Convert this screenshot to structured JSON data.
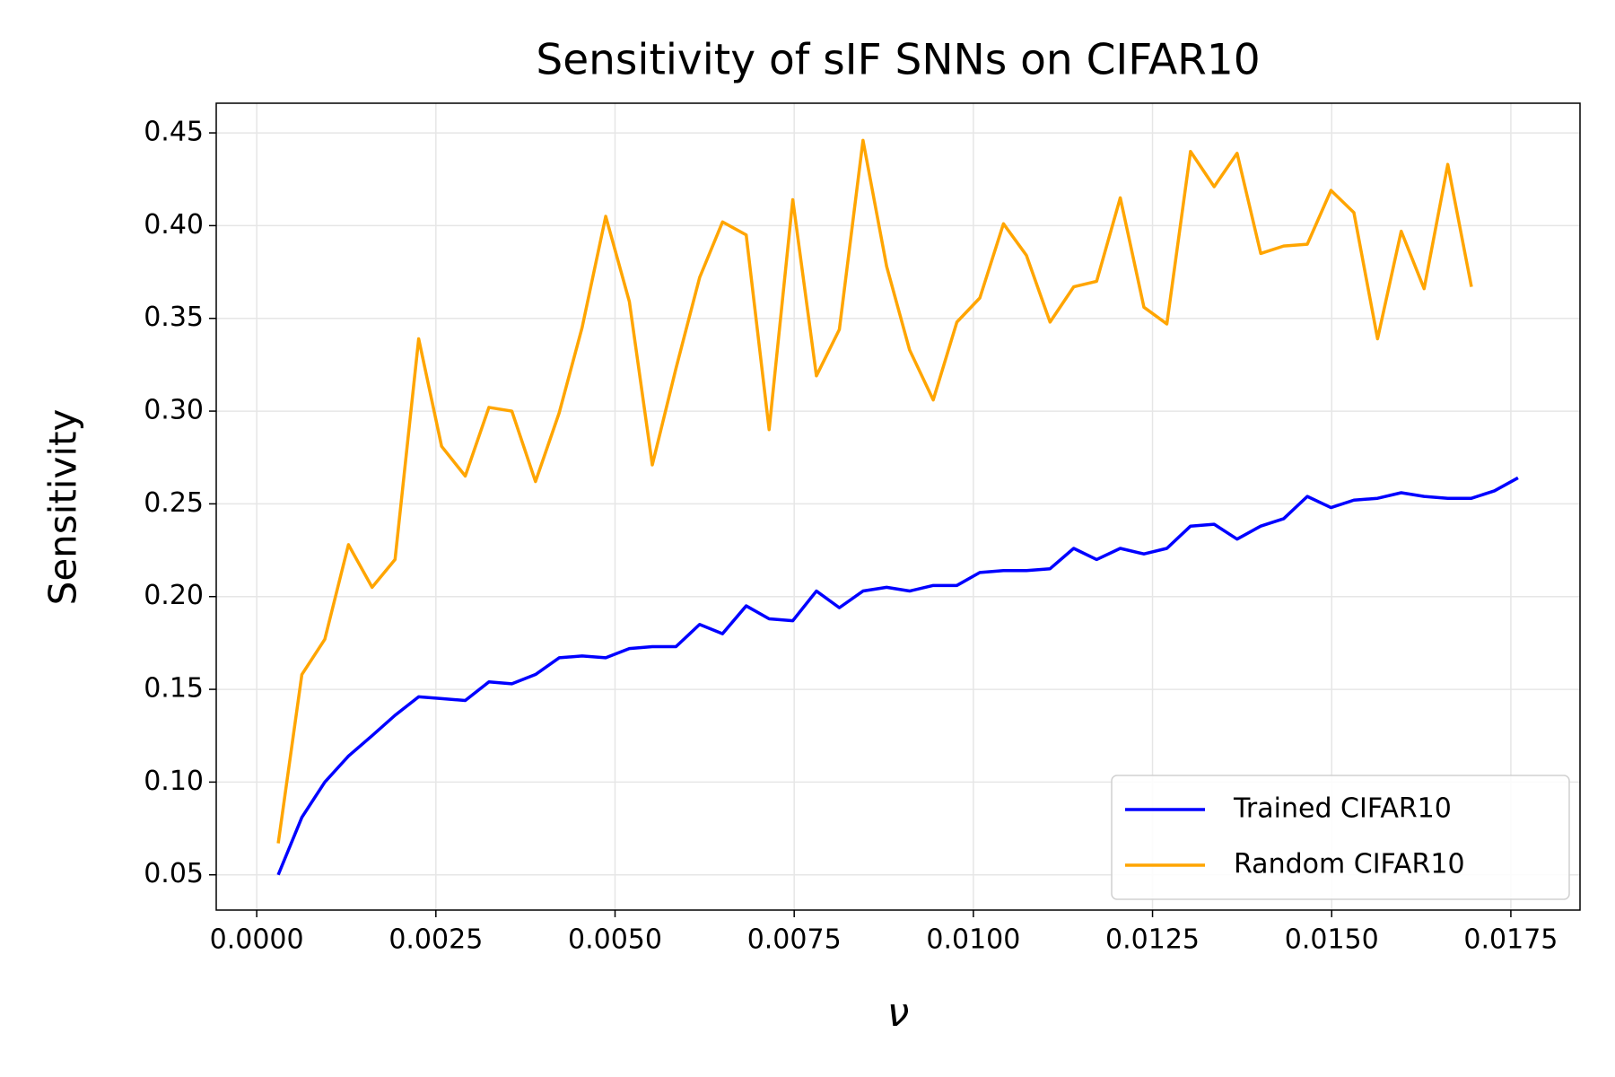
{
  "chart_data": {
    "type": "line",
    "title": "Sensitivity of sIF SNNs on CIFAR10",
    "xlabel": "ν",
    "ylabel": "Sensitivity",
    "x": [
      0.0003,
      0.00063,
      0.00095,
      0.00128,
      0.00161,
      0.00193,
      0.00226,
      0.00258,
      0.00291,
      0.00324,
      0.00356,
      0.00389,
      0.00422,
      0.00454,
      0.00487,
      0.0052,
      0.00552,
      0.00585,
      0.00618,
      0.0065,
      0.00683,
      0.00715,
      0.00748,
      0.00781,
      0.00813,
      0.00846,
      0.00879,
      0.00911,
      0.00944,
      0.00977,
      0.01009,
      0.01042,
      0.01074,
      0.01107,
      0.0114,
      0.01172,
      0.01205,
      0.01238,
      0.0127,
      0.01303,
      0.01336,
      0.01368,
      0.01401,
      0.01433,
      0.01466,
      0.01499,
      0.01531,
      0.01564,
      0.01597,
      0.01629,
      0.01662,
      0.01695,
      0.01727,
      0.0176
    ],
    "series": [
      {
        "name": "Trained CIFAR10",
        "color": "#0000ff",
        "values": [
          0.05,
          0.081,
          0.1,
          0.114,
          0.125,
          0.136,
          0.146,
          0.145,
          0.144,
          0.154,
          0.153,
          0.158,
          0.167,
          0.168,
          0.167,
          0.172,
          0.173,
          0.173,
          0.185,
          0.18,
          0.195,
          0.188,
          0.187,
          0.203,
          0.194,
          0.203,
          0.205,
          0.203,
          0.206,
          0.206,
          0.213,
          0.214,
          0.214,
          0.215,
          0.226,
          0.22,
          0.226,
          0.223,
          0.226,
          0.238,
          0.239,
          0.231,
          0.238,
          0.242,
          0.254,
          0.248,
          0.252,
          0.253,
          0.256,
          0.254,
          0.253,
          0.253,
          0.257,
          0.264
        ]
      },
      {
        "name": "Random CIFAR10",
        "color": "#ffa500",
        "values": [
          0.067,
          0.158,
          0.177,
          0.228,
          0.205,
          0.22,
          0.339,
          0.281,
          0.265,
          0.302,
          0.3,
          0.262,
          0.299,
          0.345,
          0.405,
          0.359,
          0.271,
          0.323,
          0.372,
          0.402,
          0.395,
          0.29,
          0.414,
          0.319,
          0.344,
          0.446,
          0.378,
          0.333,
          0.306,
          0.348,
          0.361,
          0.401,
          0.384,
          0.348,
          0.367,
          0.37,
          0.415,
          0.356,
          0.347,
          0.44,
          0.421,
          0.439,
          0.385,
          0.389,
          0.39,
          0.419,
          0.407,
          0.339,
          0.397,
          0.366,
          0.433,
          0.367,
          null,
          null
        ]
      }
    ],
    "xlim": [
      -0.000565,
      0.018465
    ],
    "ylim": [
      0.031,
      0.466
    ],
    "xticks": [
      {
        "value": 0,
        "label": "0.0000"
      },
      0.0025,
      {
        "value": 0.005,
        "label": "0.0050"
      },
      0.0075,
      {
        "value": 0.01,
        "label": "0.0100"
      },
      0.0125,
      {
        "value": 0.015,
        "label": "0.0150"
      },
      0.0175
    ],
    "yticks": [
      0.05,
      {
        "value": 0.1,
        "label": "0.10"
      },
      0.15,
      {
        "value": 0.2,
        "label": "0.20"
      },
      0.25,
      {
        "value": 0.3,
        "label": "0.30"
      },
      0.35,
      {
        "value": 0.4,
        "label": "0.40"
      },
      0.45
    ],
    "grid": true,
    "legend": "lower right"
  }
}
